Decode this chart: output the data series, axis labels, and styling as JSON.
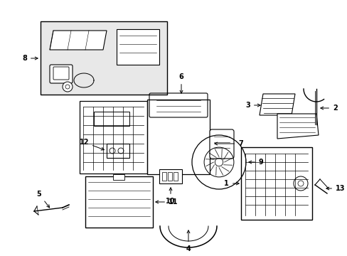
{
  "bg_color": "#ffffff",
  "line_color": "#000000",
  "fig_width": 4.89,
  "fig_height": 3.6,
  "dpi": 100,
  "gray_fill": "#e8e8e8",
  "light_gray": "#f2f2f2"
}
